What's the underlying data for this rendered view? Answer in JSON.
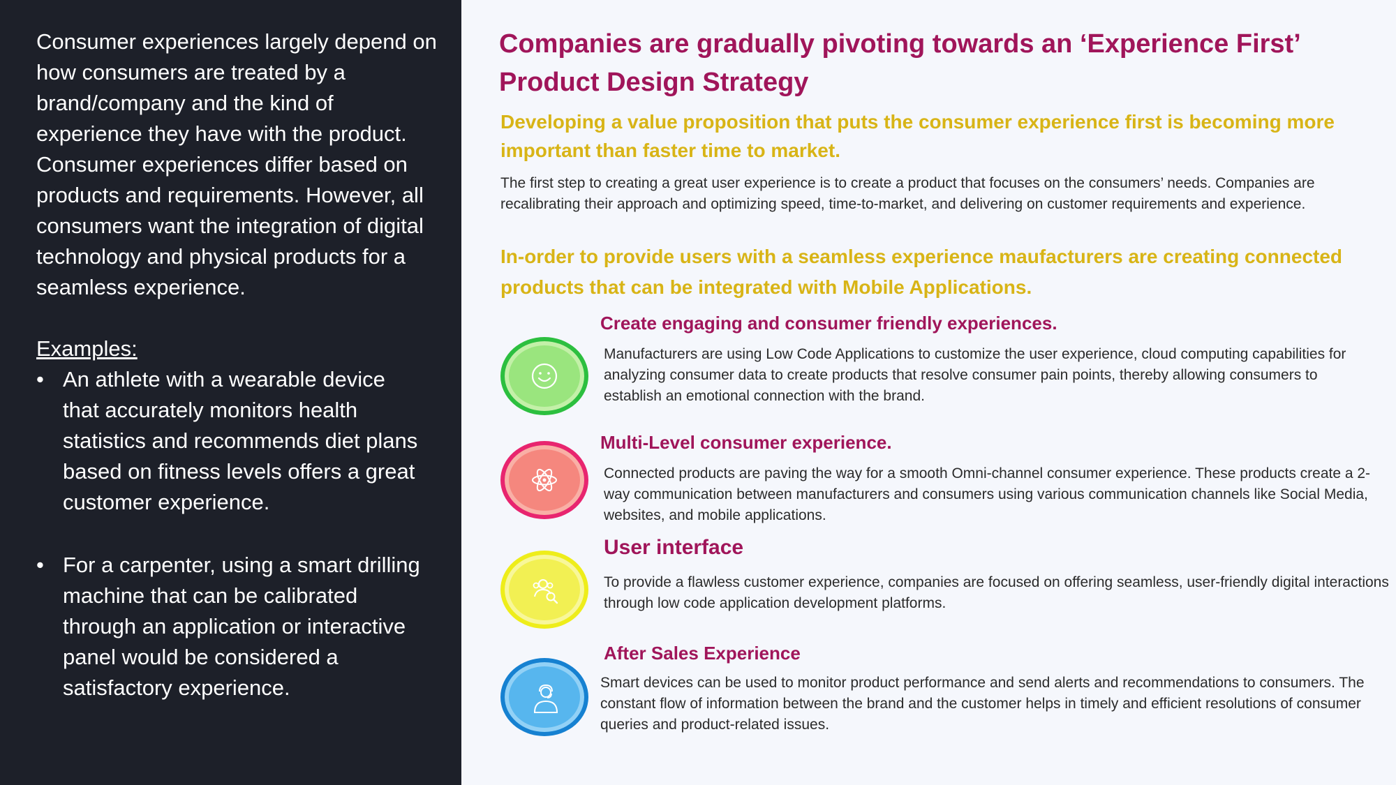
{
  "left": {
    "intro": "Consumer experiences largely depend on how consumers are treated by a brand/company and the kind of experience they have with the product. Consumer experiences differ based on products and requirements. However, all consumers want the integration of digital technology and physical products for a seamless experience.",
    "examples_label": "Examples:",
    "bullets": [
      "An athlete with a wearable device that accurately monitors health statistics and recommends diet plans based on fitness levels offers a great customer experience.",
      "For a carpenter, using a smart drilling machine that can be calibrated through an application or interactive panel would be considered a satisfactory experience."
    ],
    "bullet_marker": "•"
  },
  "right": {
    "title": "Companies are gradually pivoting towards an ‘Experience First’ Product Design Strategy",
    "subheading1": "Developing a value proposition that puts the consumer experience first is becoming more important than faster time to market.",
    "body1": "The first step to creating a great user experience is to create a product that focuses on the consumers’ needs. Companies are recalibrating their approach and optimizing speed, time-to-market, and delivering on customer requirements and experience.",
    "subheading2": "In-order to provide users with a seamless experience maufacturers are creating connected products that can be integrated with Mobile Applications.",
    "items": [
      {
        "title": "Create engaging and consumer friendly experiences.",
        "body": "Manufacturers are using Low Code Applications to customize the user experience, cloud computing capabilities for analyzing consumer data to create products that resolve consumer pain points, thereby allowing consumers to establish an emotional connection with the brand.",
        "icon": "smiley-face-icon"
      },
      {
        "title": "Multi-Level consumer experience.",
        "body": "Connected products are paving the way for a smooth Omni-channel consumer experience. These products create a 2-way communication between manufacturers and consumers using various communication channels like Social Media, websites, and mobile applications.",
        "icon": "atom-icon"
      },
      {
        "title": "User interface",
        "body": "To provide a flawless customer experience, companies are focused on offering seamless, user-friendly digital interactions through low code application development platforms.",
        "icon": "user-search-icon"
      },
      {
        "title": "After Sales Experience",
        "body": "Smart devices can be used to monitor product performance and send alerts and recommendations to consumers. The constant flow of information between the brand and the customer helps in timely and efficient resolutions of consumer queries and product-related issues.",
        "icon": "support-agent-icon"
      }
    ]
  },
  "colors": {
    "left_background": "#1d2029",
    "title": "#a0155a",
    "subheading": "#d8b416",
    "green": "#2cbf3f",
    "red": "#e8256f",
    "yellow": "#eeed1a",
    "blue": "#1681d1"
  }
}
